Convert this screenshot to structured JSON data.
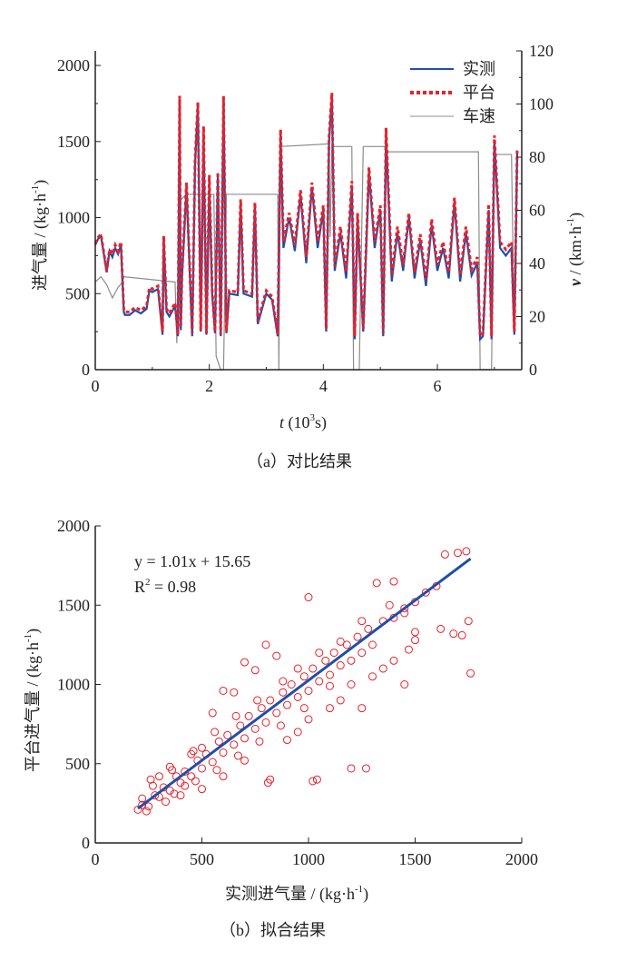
{
  "chart_data": [
    {
      "type": "line",
      "caption": "（a）对比结果",
      "xlabel_var": "t",
      "xlabel_unit": " (10",
      "xlabel_exp": "3",
      "xlabel_end": "s)",
      "ylabel": "进气量 / (kg·h",
      "ylabel_exp": "-1",
      "ylabel_end": ")",
      "y2label_var": "v",
      "y2label": " / (km·h",
      "y2label_exp": "-1",
      "y2label_end": ")",
      "xlim": [
        0,
        7.48
      ],
      "ylim": [
        0,
        2096
      ],
      "y2lim": [
        0,
        120
      ],
      "xticks": [
        "0",
        "2",
        "4",
        "6"
      ],
      "xtick_values": [
        0,
        2,
        4,
        6
      ],
      "yticks": [
        "0",
        "500",
        "1000",
        "1500",
        "2000"
      ],
      "ytick_values": [
        0,
        500,
        1000,
        1500,
        2000
      ],
      "y2ticks": [
        "0",
        "20",
        "40",
        "60",
        "80",
        "100",
        "120"
      ],
      "y2tick_values": [
        0,
        20,
        40,
        60,
        80,
        100,
        120
      ],
      "legend": {
        "placement": "top-right",
        "entries": [
          "实测",
          "平台",
          "车速"
        ]
      },
      "colors": {
        "measured": "#1f4fa8",
        "platform": "#e8202a",
        "speed": "#8c8c8c"
      },
      "t": [
        0,
        0.05,
        0.1,
        0.15,
        0.2,
        0.25,
        0.3,
        0.35,
        0.4,
        0.45,
        0.5,
        0.52,
        0.6,
        0.7,
        0.8,
        0.9,
        0.95,
        1.0,
        1.1,
        1.18,
        1.2,
        1.25,
        1.3,
        1.4,
        1.45,
        1.48,
        1.5,
        1.52,
        1.6,
        1.7,
        1.75,
        1.8,
        1.85,
        1.9,
        1.95,
        2.0,
        2.05,
        2.1,
        2.15,
        2.2,
        2.25,
        2.3,
        2.35,
        2.5,
        2.55,
        2.6,
        2.75,
        2.8,
        2.85,
        3.0,
        3.1,
        3.2,
        3.25,
        3.3,
        3.4,
        3.5,
        3.6,
        3.7,
        3.8,
        3.9,
        4.0,
        4.05,
        4.1,
        4.15,
        4.2,
        4.3,
        4.4,
        4.5,
        4.55,
        4.6,
        4.7,
        4.8,
        4.9,
        5.0,
        5.05,
        5.1,
        5.2,
        5.3,
        5.4,
        5.5,
        5.6,
        5.7,
        5.8,
        5.9,
        6.0,
        6.1,
        6.2,
        6.3,
        6.4,
        6.5,
        6.6,
        6.7,
        6.75,
        6.8,
        6.9,
        6.95,
        7.0,
        7.1,
        7.2,
        7.3,
        7.35,
        7.4
      ],
      "measured": [
        820,
        860,
        880,
        760,
        640,
        780,
        740,
        800,
        760,
        820,
        380,
        360,
        360,
        390,
        370,
        400,
        520,
        510,
        530,
        230,
        860,
        380,
        350,
        420,
        220,
        1780,
        260,
        600,
        1200,
        220,
        1350,
        1740,
        250,
        1550,
        230,
        1230,
        500,
        240,
        1280,
        220,
        1780,
        240,
        500,
        490,
        1100,
        500,
        480,
        1080,
        300,
        500,
        460,
        220,
        1550,
        800,
        1000,
        780,
        1150,
        700,
        1200,
        800,
        1050,
        250,
        1500,
        1800,
        650,
        900,
        600,
        1200,
        200,
        1000,
        250,
        1300,
        800,
        1050,
        220,
        1550,
        580,
        900,
        650,
        1000,
        600,
        850,
        550,
        950,
        650,
        800,
        600,
        1100,
        580,
        900,
        620,
        700,
        200,
        220,
        1050,
        200,
        1500,
        800,
        750,
        800,
        230,
        1420
      ],
      "platform": [
        830,
        870,
        890,
        770,
        650,
        790,
        760,
        820,
        780,
        840,
        400,
        380,
        380,
        410,
        390,
        420,
        540,
        530,
        550,
        250,
        880,
        400,
        370,
        440,
        230,
        1800,
        280,
        620,
        1230,
        240,
        1380,
        1760,
        260,
        1600,
        240,
        1280,
        520,
        250,
        1300,
        230,
        1800,
        250,
        520,
        510,
        1120,
        520,
        500,
        1100,
        320,
        520,
        480,
        230,
        1580,
        840,
        1030,
        820,
        1180,
        740,
        1230,
        840,
        1080,
        270,
        1530,
        1820,
        680,
        940,
        640,
        1240,
        220,
        1030,
        270,
        1330,
        840,
        1080,
        240,
        1590,
        620,
        940,
        690,
        1030,
        640,
        890,
        590,
        990,
        690,
        840,
        640,
        1130,
        620,
        940,
        660,
        740,
        220,
        240,
        1090,
        220,
        1540,
        840,
        790,
        840,
        250,
        1450
      ],
      "speed_t": [
        0,
        0.1,
        0.2,
        0.3,
        0.4,
        0.48,
        0.5,
        1.4,
        1.43,
        1.45,
        1.5,
        1.6,
        2.08,
        2.12,
        2.2,
        2.25,
        2.3,
        3.2,
        3.22,
        3.25,
        4.1,
        4.12,
        4.15,
        4.5,
        4.53,
        4.63,
        4.7,
        5.08,
        5.12,
        6.72,
        6.75,
        6.95,
        7.0,
        7.3,
        7.33
      ],
      "speed": [
        33,
        35,
        32,
        27,
        31,
        33,
        35,
        33,
        10,
        33,
        64,
        66,
        66,
        5,
        0,
        0,
        66,
        66,
        0,
        84,
        85,
        50,
        84,
        84,
        0,
        0,
        84,
        84,
        82,
        82,
        0,
        0,
        81,
        81,
        40
      ]
    },
    {
      "type": "scatter",
      "caption": "（b）拟合结果",
      "xlabel": "实测进气量 / (kg·h",
      "xlabel_exp": "-1",
      "xlabel_end": ")",
      "ylabel": "平台进气量 / (kg·h",
      "ylabel_exp": "-1",
      "ylabel_end": ")",
      "xlim": [
        0,
        2000
      ],
      "ylim": [
        0,
        2000
      ],
      "xticks": [
        "0",
        "500",
        "1000",
        "1500",
        "2000"
      ],
      "xtick_values": [
        0,
        500,
        1000,
        1500,
        2000
      ],
      "yticks": [
        "0",
        "500",
        "1000",
        "1500",
        "2000"
      ],
      "ytick_values": [
        0,
        500,
        1000,
        1500,
        2000
      ],
      "equation": "y = 1.01x + 15.65",
      "r2_prefix": "R",
      "r2_exp": "2",
      "r2_suffix": " = 0.98",
      "fit": {
        "slope": 1.01,
        "intercept": 15.65,
        "x_range": [
          200,
          1760
        ]
      },
      "colors": {
        "points": "#e8202a",
        "fit": "#1f4fa8"
      },
      "points": [
        [
          200,
          210
        ],
        [
          220,
          240
        ],
        [
          250,
          230
        ],
        [
          280,
          300
        ],
        [
          300,
          290
        ],
        [
          320,
          350
        ],
        [
          350,
          330
        ],
        [
          380,
          420
        ],
        [
          400,
          380
        ],
        [
          420,
          450
        ],
        [
          450,
          420
        ],
        [
          480,
          520
        ],
        [
          500,
          470
        ],
        [
          520,
          560
        ],
        [
          550,
          510
        ],
        [
          580,
          640
        ],
        [
          600,
          570
        ],
        [
          620,
          680
        ],
        [
          650,
          620
        ],
        [
          680,
          740
        ],
        [
          700,
          660
        ],
        [
          720,
          800
        ],
        [
          750,
          720
        ],
        [
          780,
          850
        ],
        [
          800,
          760
        ],
        [
          820,
          900
        ],
        [
          850,
          820
        ],
        [
          880,
          950
        ],
        [
          900,
          870
        ],
        [
          920,
          1000
        ],
        [
          950,
          920
        ],
        [
          980,
          1050
        ],
        [
          1000,
          960
        ],
        [
          1020,
          1100
        ],
        [
          1050,
          1020
        ],
        [
          1080,
          1150
        ],
        [
          1100,
          1060
        ],
        [
          1120,
          1200
        ],
        [
          1150,
          1120
        ],
        [
          1180,
          1250
        ],
        [
          1200,
          1150
        ],
        [
          1230,
          1300
        ],
        [
          1250,
          1200
        ],
        [
          1280,
          1350
        ],
        [
          1300,
          1250
        ],
        [
          1350,
          1400
        ],
        [
          1400,
          1420
        ],
        [
          1450,
          1480
        ],
        [
          1500,
          1520
        ],
        [
          1550,
          1580
        ],
        [
          1600,
          1620
        ],
        [
          1640,
          1820
        ],
        [
          1700,
          1830
        ],
        [
          1740,
          1840
        ],
        [
          1750,
          1400
        ],
        [
          1760,
          1070
        ],
        [
          1720,
          1310
        ],
        [
          1680,
          1320
        ],
        [
          1620,
          1350
        ],
        [
          1500,
          1280
        ],
        [
          1470,
          1220
        ],
        [
          1450,
          1450
        ],
        [
          1400,
          1650
        ],
        [
          1320,
          1640
        ],
        [
          1200,
          1000
        ],
        [
          1250,
          850
        ],
        [
          1270,
          470
        ],
        [
          1200,
          470
        ],
        [
          1040,
          400
        ],
        [
          1020,
          390
        ],
        [
          820,
          400
        ],
        [
          810,
          380
        ],
        [
          1000,
          1550
        ],
        [
          800,
          1250
        ],
        [
          700,
          1140
        ],
        [
          600,
          960
        ],
        [
          550,
          820
        ],
        [
          500,
          600
        ],
        [
          450,
          560
        ],
        [
          420,
          360
        ],
        [
          350,
          480
        ],
        [
          300,
          420
        ],
        [
          260,
          400
        ],
        [
          900,
          650
        ],
        [
          950,
          700
        ],
        [
          1100,
          850
        ],
        [
          1150,
          900
        ],
        [
          1000,
          780
        ],
        [
          850,
          1180
        ],
        [
          750,
          1090
        ],
        [
          650,
          950
        ],
        [
          400,
          300
        ],
        [
          500,
          340
        ],
        [
          600,
          420
        ],
        [
          700,
          520
        ],
        [
          220,
          280
        ],
        [
          240,
          200
        ],
        [
          330,
          260
        ],
        [
          1300,
          1050
        ],
        [
          1350,
          1100
        ],
        [
          1400,
          1150
        ],
        [
          1380,
          1500
        ],
        [
          1250,
          1400
        ],
        [
          1150,
          1270
        ],
        [
          1050,
          1200
        ],
        [
          950,
          1100
        ],
        [
          880,
          1020
        ],
        [
          760,
          900
        ],
        [
          660,
          800
        ],
        [
          560,
          700
        ],
        [
          460,
          580
        ],
        [
          360,
          460
        ],
        [
          270,
          360
        ],
        [
          1450,
          1000
        ],
        [
          1500,
          1330
        ],
        [
          1100,
          990
        ],
        [
          980,
          850
        ],
        [
          870,
          740
        ],
        [
          770,
          640
        ],
        [
          670,
          550
        ],
        [
          570,
          460
        ],
        [
          470,
          390
        ],
        [
          370,
          310
        ]
      ]
    }
  ]
}
